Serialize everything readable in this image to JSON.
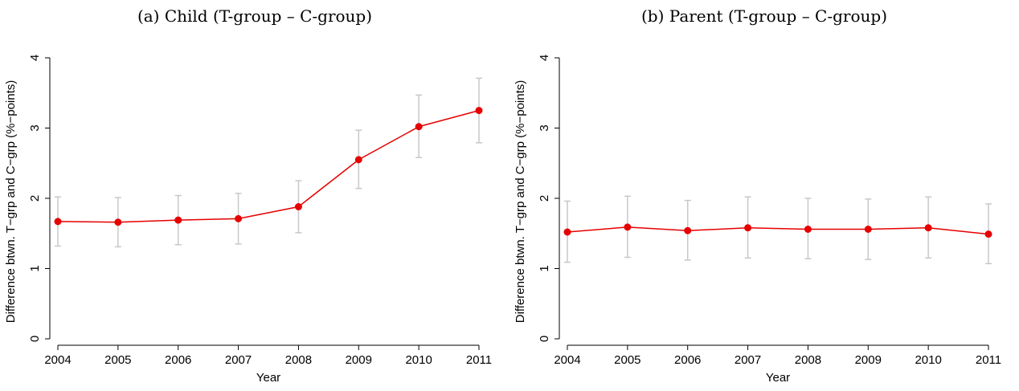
{
  "chart_data": [
    {
      "type": "line",
      "title": "(a) Child (T-group – C-group)",
      "xlabel": "Year",
      "ylabel": "Difference btwn. T−grp and C−grp (%−points)",
      "x": [
        2004,
        2005,
        2006,
        2007,
        2008,
        2009,
        2010,
        2011
      ],
      "ylim": [
        0,
        4
      ],
      "yticks": [
        0,
        1,
        2,
        3,
        4
      ],
      "grid": false,
      "series": [
        {
          "values": [
            1.67,
            1.66,
            1.69,
            1.71,
            1.88,
            2.55,
            3.02,
            3.25
          ],
          "ci_low": [
            1.32,
            1.31,
            1.34,
            1.35,
            1.51,
            2.14,
            2.58,
            2.79
          ],
          "ci_high": [
            2.02,
            2.01,
            2.04,
            2.07,
            2.25,
            2.97,
            3.47,
            3.71
          ],
          "color": "#e60000",
          "ci_color": "#c8c8c8"
        }
      ]
    },
    {
      "type": "line",
      "title": "(b) Parent (T-group – C-group)",
      "xlabel": "Year",
      "ylabel": "Difference btwn. T−grp and C−grp (%−points)",
      "x": [
        2004,
        2005,
        2006,
        2007,
        2008,
        2009,
        2010,
        2011
      ],
      "ylim": [
        0,
        4
      ],
      "yticks": [
        0,
        1,
        2,
        3,
        4
      ],
      "grid": false,
      "series": [
        {
          "values": [
            1.52,
            1.59,
            1.54,
            1.58,
            1.56,
            1.56,
            1.58,
            1.49
          ],
          "ci_low": [
            1.09,
            1.16,
            1.12,
            1.15,
            1.14,
            1.13,
            1.15,
            1.07
          ],
          "ci_high": [
            1.96,
            2.03,
            1.97,
            2.02,
            2.0,
            1.99,
            2.02,
            1.92
          ],
          "color": "#e60000",
          "ci_color": "#c8c8c8"
        }
      ]
    }
  ]
}
